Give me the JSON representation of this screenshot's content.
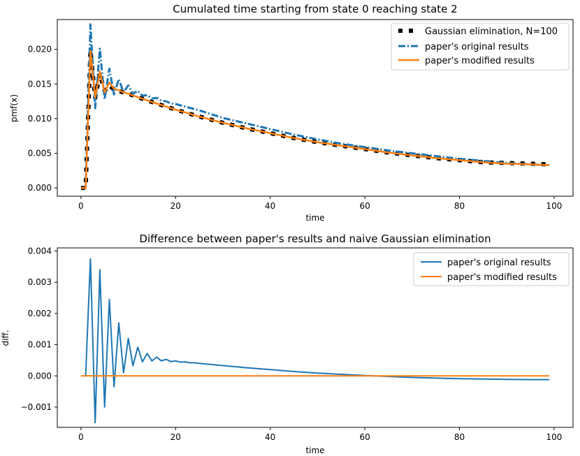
{
  "colors": {
    "gaussian": "#000000",
    "original": "#1f77b4",
    "modified": "#ff7f0e"
  },
  "chart_data": [
    {
      "type": "line",
      "title": "Cumulated time starting from state 0 reaching state 2",
      "xlabel": "time",
      "ylabel": "pmf(x)",
      "xlim": [
        -5,
        104
      ],
      "ylim": [
        -0.0012,
        0.0243
      ],
      "xticks": [
        0,
        20,
        40,
        60,
        80,
        100
      ],
      "xtick_labels": [
        "0",
        "20",
        "40",
        "60",
        "80",
        "100"
      ],
      "yticks": [
        0.0,
        0.005,
        0.01,
        0.015,
        0.02
      ],
      "ytick_labels": [
        "0.000",
        "0.005",
        "0.010",
        "0.015",
        "0.020"
      ],
      "legend_position": "top-right",
      "series": [
        {
          "name": "Gaussian elimination, N=100",
          "style": "dotted-square",
          "x": [
            0,
            1,
            2,
            3,
            4,
            5,
            6,
            7,
            8,
            9,
            10,
            12,
            15,
            20,
            25,
            30,
            35,
            40,
            45,
            50,
            55,
            60,
            65,
            70,
            75,
            80,
            85,
            90,
            95,
            99
          ],
          "y": [
            0.0,
            0.0,
            0.0198,
            0.013,
            0.0165,
            0.014,
            0.0148,
            0.0142,
            0.014,
            0.0138,
            0.0136,
            0.0131,
            0.0124,
            0.0113,
            0.0103,
            0.0094,
            0.0086,
            0.0079,
            0.0072,
            0.0066,
            0.0061,
            0.0056,
            0.0051,
            0.0047,
            0.0043,
            0.004,
            0.0037,
            0.0036,
            0.0035,
            0.0034
          ]
        },
        {
          "name": "paper's original results",
          "style": "dash-dot",
          "x": [
            0,
            1,
            2,
            3,
            4,
            5,
            6,
            7,
            8,
            9,
            10,
            11,
            12,
            13,
            14,
            15,
            16,
            17,
            18,
            19,
            20,
            25,
            30,
            35,
            40,
            45,
            50,
            55,
            60,
            65,
            70,
            75,
            80,
            85,
            90,
            95,
            99
          ],
          "y": [
            0.0,
            0.0,
            0.0236,
            0.0115,
            0.0201,
            0.0128,
            0.0172,
            0.0135,
            0.0157,
            0.0138,
            0.0148,
            0.0136,
            0.014,
            0.0133,
            0.0134,
            0.0129,
            0.013,
            0.0126,
            0.0125,
            0.0122,
            0.0121,
            0.0112,
            0.0101,
            0.0093,
            0.0085,
            0.0077,
            0.007,
            0.0064,
            0.0059,
            0.0054,
            0.005,
            0.0046,
            0.0042,
            0.0039,
            0.0036,
            0.0034,
            0.0033
          ]
        },
        {
          "name": "paper's modified results",
          "style": "solid",
          "x": [
            0,
            1,
            2,
            3,
            4,
            5,
            6,
            7,
            8,
            9,
            10,
            12,
            15,
            20,
            25,
            30,
            35,
            40,
            45,
            50,
            55,
            60,
            65,
            70,
            75,
            80,
            85,
            90,
            95,
            99
          ],
          "y": [
            0.0,
            0.0,
            0.0198,
            0.013,
            0.0168,
            0.0138,
            0.0152,
            0.0143,
            0.0141,
            0.0138,
            0.0136,
            0.0131,
            0.0124,
            0.0113,
            0.0103,
            0.0094,
            0.0086,
            0.0079,
            0.0072,
            0.0066,
            0.0061,
            0.0056,
            0.0051,
            0.0047,
            0.0043,
            0.004,
            0.0037,
            0.0035,
            0.0034,
            0.0033
          ]
        }
      ]
    },
    {
      "type": "line",
      "title": "Difference between paper's results and naive Gaussian elimination",
      "xlabel": "time",
      "ylabel": "diff.",
      "xlim": [
        -5,
        104
      ],
      "ylim": [
        -0.00165,
        0.0041
      ],
      "xticks": [
        0,
        20,
        40,
        60,
        80,
        100
      ],
      "xtick_labels": [
        "0",
        "20",
        "40",
        "60",
        "80",
        "100"
      ],
      "yticks": [
        -0.001,
        0.0,
        0.001,
        0.002,
        0.003,
        0.004
      ],
      "ytick_labels": [
        "−0.001",
        "0.000",
        "0.001",
        "0.002",
        "0.003",
        "0.004"
      ],
      "legend_position": "top-right",
      "series": [
        {
          "name": "paper's original results",
          "style": "solid",
          "x": [
            1,
            2,
            3,
            4,
            5,
            6,
            7,
            8,
            9,
            10,
            11,
            12,
            13,
            14,
            15,
            16,
            17,
            18,
            19,
            20,
            21,
            22,
            23,
            24,
            25,
            30,
            35,
            40,
            45,
            50,
            55,
            60,
            62,
            65,
            70,
            75,
            80,
            85,
            90,
            95,
            99
          ],
          "y": [
            0.0,
            0.00375,
            -0.0015,
            0.0034,
            -0.001,
            0.00245,
            -0.00035,
            0.0017,
            0.0001,
            0.0012,
            0.00032,
            0.00092,
            0.00045,
            0.00072,
            0.00048,
            0.0006,
            0.00048,
            0.00053,
            0.00046,
            0.00048,
            0.00044,
            0.00045,
            0.00042,
            0.00042,
            0.0004,
            0.00033,
            0.00026,
            0.0002,
            0.00014,
            9e-05,
            5e-05,
            1e-05,
            0.0,
            -2e-05,
            -5e-05,
            -7e-05,
            -9e-05,
            -0.0001,
            -0.00011,
            -0.00012,
            -0.00012
          ]
        },
        {
          "name": "paper's modified results",
          "style": "solid",
          "x": [
            0,
            99
          ],
          "y": [
            0.0,
            0.0
          ]
        }
      ]
    }
  ]
}
